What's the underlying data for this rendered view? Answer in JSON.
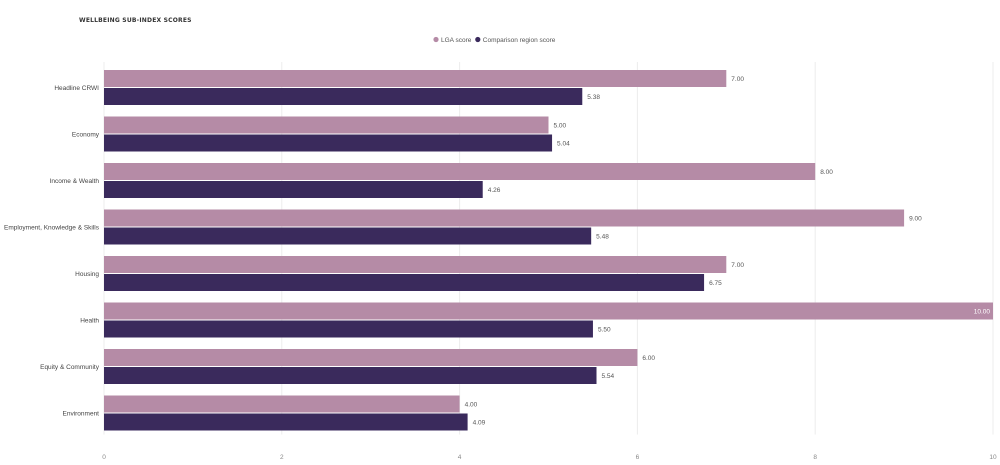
{
  "chart_data": {
    "type": "bar",
    "orientation": "horizontal",
    "title": "WELLBEING SUB-INDEX SCORES",
    "categories": [
      "Headline CRWI",
      "Economy",
      "Income & Wealth",
      "Employment, Knowledge & Skills",
      "Housing",
      "Health",
      "Equity & Community",
      "Environment"
    ],
    "series": [
      {
        "name": "LGA score",
        "color": "#b58ba6",
        "values": [
          7.0,
          5.0,
          8.0,
          9.0,
          7.0,
          10.0,
          6.0,
          4.0
        ],
        "labels": [
          "7.00",
          "5.00",
          "8.00",
          "9.00",
          "7.00",
          "10.00",
          "6.00",
          "4.00"
        ]
      },
      {
        "name": "Comparison region score",
        "color": "#3a2a5c",
        "values": [
          5.38,
          5.04,
          4.26,
          5.48,
          6.75,
          5.5,
          5.54,
          4.09
        ],
        "labels": [
          "5.38",
          "5.04",
          "4.26",
          "5.48",
          "6.75",
          "5.50",
          "5.54",
          "4.09"
        ]
      }
    ],
    "xlim": [
      0,
      10
    ],
    "xticks": [
      "0",
      "2",
      "4",
      "6",
      "8",
      "10"
    ],
    "grid": true,
    "legend": "top-center"
  }
}
